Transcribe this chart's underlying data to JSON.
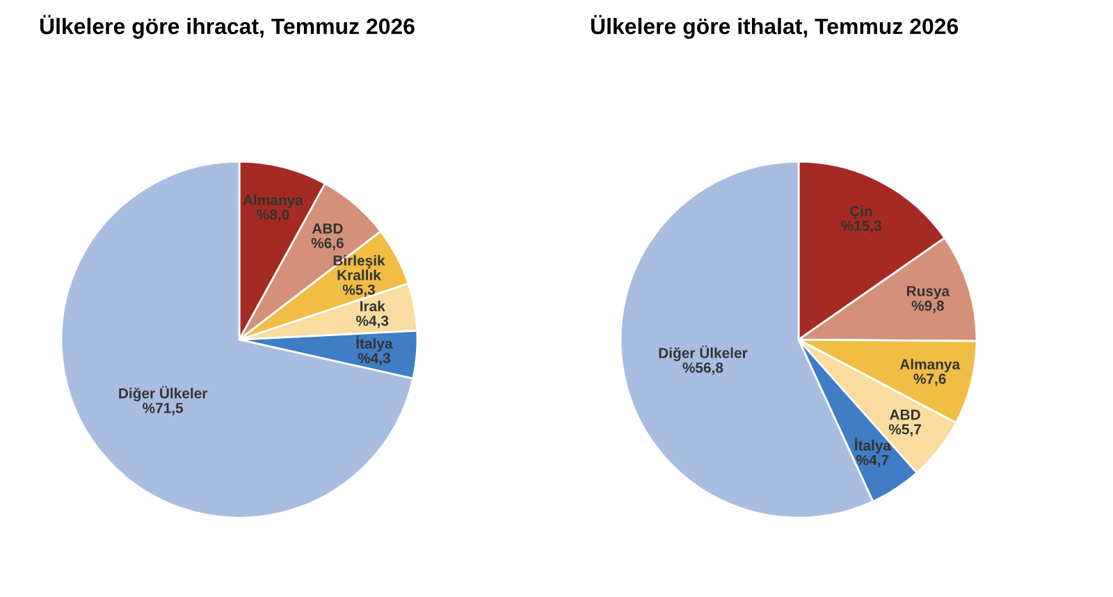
{
  "chart_data": [
    {
      "type": "pie",
      "title": "Ülkelere göre ihracat, Temmuz 2026",
      "categories": [
        "Almanya",
        "ABD",
        "Birleşik Krallık",
        "Irak",
        "İtalya",
        "Diğer Ülkeler"
      ],
      "values": [
        8.0,
        6.6,
        5.3,
        4.3,
        4.3,
        71.5
      ],
      "value_labels": [
        "%8,0",
        "%6,6",
        "%5,3",
        "%4,3",
        "%4,3",
        "%71,5"
      ],
      "colors": [
        "#a52a23",
        "#d4907a",
        "#f0bd45",
        "#f9dca0",
        "#3f7dc4",
        "#a9bde0"
      ]
    },
    {
      "type": "pie",
      "title": "Ülkelere göre ithalat, Temmuz 2026",
      "categories": [
        "Çin",
        "Rusya",
        "Almanya",
        "ABD",
        "İtalya",
        "Diğer Ülkeler"
      ],
      "values": [
        15.3,
        9.8,
        7.6,
        5.7,
        4.7,
        56.8
      ],
      "value_labels": [
        "%15,3",
        "%9,8",
        "%7,6",
        "%5,7",
        "%4,7",
        "%56,8"
      ],
      "colors": [
        "#a52a23",
        "#d4907a",
        "#f0bd45",
        "#f9dca0",
        "#3f7dc4",
        "#a9bde0"
      ]
    }
  ]
}
